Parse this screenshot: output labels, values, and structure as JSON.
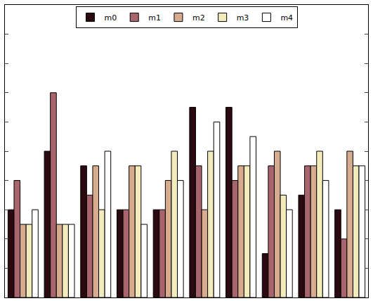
{
  "chart_data": {
    "type": "bar",
    "categories": [
      null,
      null,
      null,
      null,
      null,
      null,
      null,
      null,
      null,
      null
    ],
    "series": [
      {
        "name": "m0",
        "color": "#2a0a10",
        "values": [
          3.0,
          5.0,
          4.5,
          3.0,
          3.0,
          6.5,
          6.5,
          1.5,
          3.5,
          3.0
        ]
      },
      {
        "name": "m1",
        "color": "#a8656d",
        "values": [
          4.0,
          7.0,
          3.5,
          3.0,
          3.0,
          4.5,
          4.0,
          4.5,
          4.5,
          2.0
        ]
      },
      {
        "name": "m2",
        "color": "#d6ab8e",
        "values": [
          2.5,
          2.5,
          4.5,
          4.5,
          4.0,
          3.0,
          4.5,
          5.0,
          4.5,
          5.0
        ]
      },
      {
        "name": "m3",
        "color": "#f2ecbc",
        "values": [
          2.5,
          2.5,
          3.0,
          4.5,
          5.0,
          5.0,
          4.5,
          3.5,
          5.0,
          4.5
        ]
      },
      {
        "name": "m4",
        "color": "#ffffff",
        "values": [
          3.0,
          2.5,
          5.0,
          2.5,
          4.0,
          6.0,
          5.5,
          3.0,
          4.0,
          4.5
        ]
      }
    ],
    "ylim": [
      0,
      10
    ],
    "yticks": [
      0,
      1,
      2,
      3,
      4,
      5,
      6,
      7,
      8,
      9,
      10
    ],
    "grid": false,
    "legend": "top",
    "tick_labels": false
  }
}
